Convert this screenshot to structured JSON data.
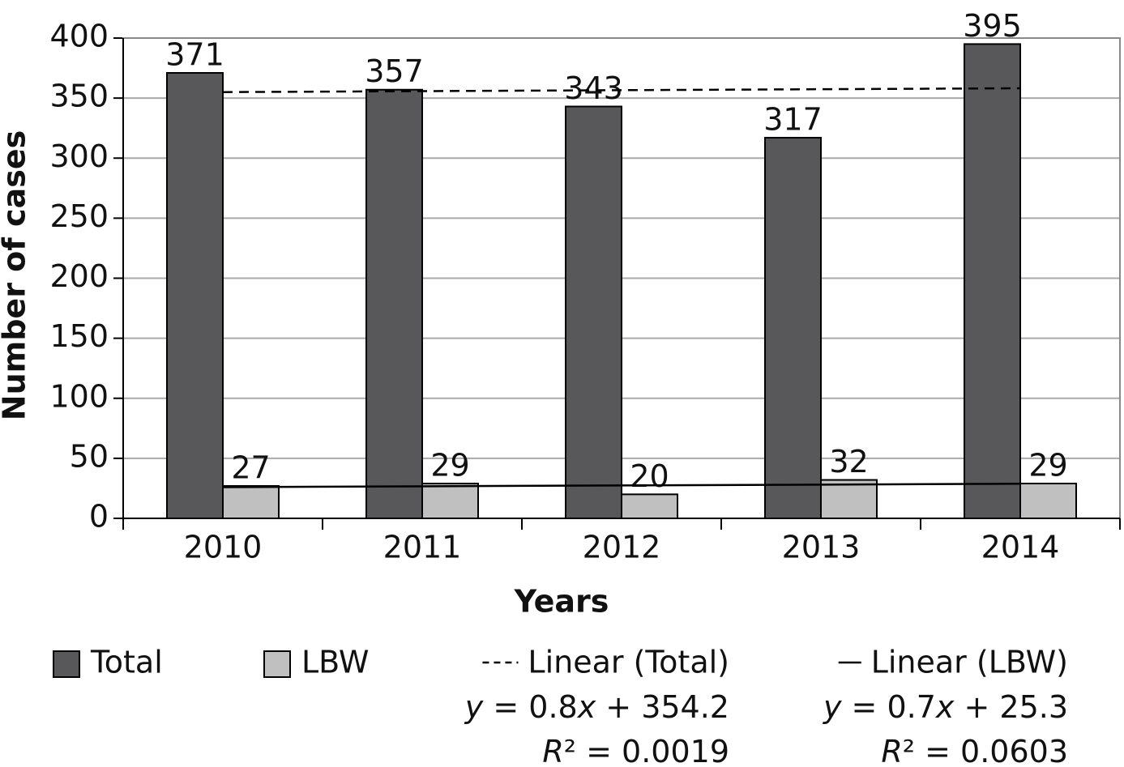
{
  "chart_data": {
    "type": "bar",
    "y_label": "Number of cases",
    "x_label": "Years",
    "categories": [
      "2010",
      "2011",
      "2012",
      "2013",
      "2014"
    ],
    "series": [
      {
        "name": "Total",
        "color": "#58585a",
        "values": [
          371,
          357,
          343,
          317,
          395
        ]
      },
      {
        "name": "LBW",
        "color": "#c0c0c0",
        "values": [
          27,
          29,
          20,
          32,
          29
        ]
      }
    ],
    "trendlines": [
      {
        "name": "Linear (Total)",
        "dashed": true,
        "slope": 0.8,
        "intercept": 354.2,
        "equation": "y = 0.8x + 354.2",
        "r2": "R² = 0.0019"
      },
      {
        "name": "Linear (LBW)",
        "dashed": false,
        "slope": 0.7,
        "intercept": 25.3,
        "equation": "y = 0.7x + 25.3",
        "r2": "R² = 0.0603"
      }
    ],
    "ylim": [
      0,
      400
    ],
    "yticks": [
      0,
      50,
      100,
      150,
      200,
      250,
      300,
      350,
      400
    ],
    "grid": true
  }
}
